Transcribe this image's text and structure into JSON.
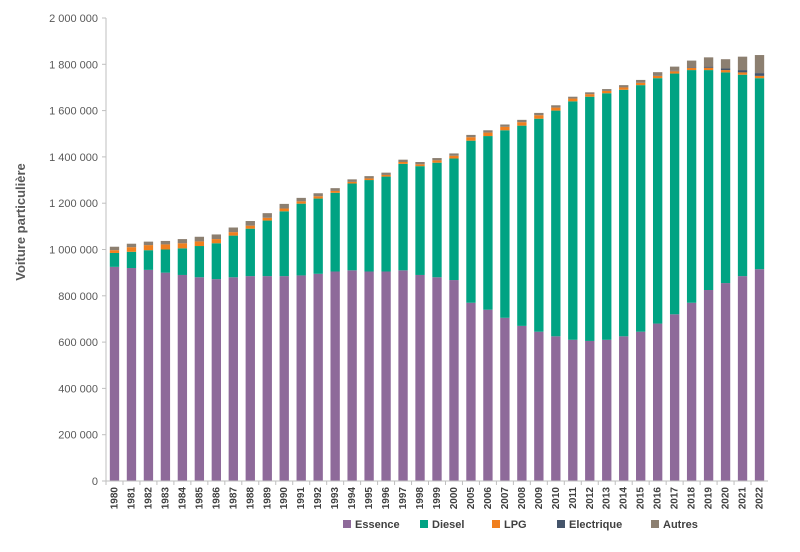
{
  "chart_data": {
    "type": "bar",
    "stacked": true,
    "ylabel": "Voiture particulière",
    "xlabel": "",
    "ylim": [
      0,
      2000000
    ],
    "yticks": [
      0,
      200000,
      400000,
      600000,
      800000,
      1000000,
      1200000,
      1400000,
      1600000,
      1800000,
      2000000
    ],
    "ytick_labels": [
      "0",
      "200 000",
      "400 000",
      "600 000",
      "800 000",
      "1 000 000",
      "1 200 000",
      "1 400 000",
      "1 600 000",
      "1 800 000",
      "2 000 000"
    ],
    "grid": false,
    "legend_position": "bottom",
    "categories": [
      "1980",
      "1981",
      "1982",
      "1983",
      "1984",
      "1985",
      "1986",
      "1987",
      "1988",
      "1989",
      "1990",
      "1991",
      "1992",
      "1993",
      "1994",
      "1995",
      "1996",
      "1997",
      "1998",
      "1999",
      "2000",
      "2005",
      "2006",
      "2007",
      "2008",
      "2009",
      "2010",
      "2011",
      "2012",
      "2013",
      "2014",
      "2015",
      "2016",
      "2017",
      "2018",
      "2019",
      "2020",
      "2021",
      "2022"
    ],
    "series": [
      {
        "name": "Essence",
        "color": "#8E6A9A",
        "values": [
          925000,
          920000,
          912000,
          900000,
          890000,
          880000,
          872000,
          880000,
          885000,
          885000,
          885000,
          888000,
          895000,
          905000,
          910000,
          905000,
          905000,
          910000,
          890000,
          880000,
          868000,
          770000,
          740000,
          705000,
          670000,
          645000,
          625000,
          610000,
          605000,
          610000,
          625000,
          645000,
          680000,
          720000,
          770000,
          825000,
          855000,
          885000,
          915000
        ]
      },
      {
        "name": "Diesel",
        "color": "#00A383",
        "values": [
          60000,
          70000,
          85000,
          100000,
          115000,
          135000,
          155000,
          180000,
          205000,
          240000,
          280000,
          310000,
          325000,
          340000,
          375000,
          395000,
          410000,
          460000,
          470000,
          495000,
          525000,
          700000,
          750000,
          810000,
          865000,
          920000,
          975000,
          1030000,
          1055000,
          1065000,
          1065000,
          1065000,
          1060000,
          1040000,
          1005000,
          950000,
          910000,
          870000,
          825000
        ]
      },
      {
        "name": "LPG",
        "color": "#F07F1E",
        "values": [
          12000,
          20000,
          22000,
          22000,
          22000,
          20000,
          18000,
          15000,
          13000,
          12000,
          12000,
          10000,
          10000,
          8000,
          7000,
          7000,
          7000,
          8000,
          8000,
          10000,
          12000,
          15000,
          15000,
          15000,
          15000,
          15000,
          13000,
          12000,
          11000,
          10000,
          10000,
          10000,
          10000,
          10000,
          10000,
          10000,
          10000,
          10000,
          10000
        ]
      },
      {
        "name": "Electrique",
        "color": "#44546A",
        "values": [
          0,
          0,
          0,
          0,
          0,
          0,
          0,
          0,
          0,
          0,
          0,
          0,
          0,
          0,
          0,
          0,
          0,
          0,
          0,
          0,
          0,
          0,
          0,
          0,
          0,
          0,
          0,
          0,
          0,
          0,
          0,
          500,
          1000,
          2000,
          3000,
          5000,
          7000,
          10000,
          12000
        ]
      },
      {
        "name": "Autres",
        "color": "#8C7F70",
        "values": [
          15000,
          15000,
          15000,
          15000,
          18000,
          20000,
          20000,
          20000,
          20000,
          20000,
          20000,
          15000,
          13000,
          12000,
          11000,
          10000,
          10000,
          10000,
          10000,
          10000,
          10000,
          10000,
          10000,
          10000,
          10000,
          10000,
          10000,
          8000,
          8000,
          8000,
          10000,
          12000,
          15000,
          18000,
          28000,
          40000,
          40000,
          58000,
          78000
        ]
      }
    ]
  }
}
